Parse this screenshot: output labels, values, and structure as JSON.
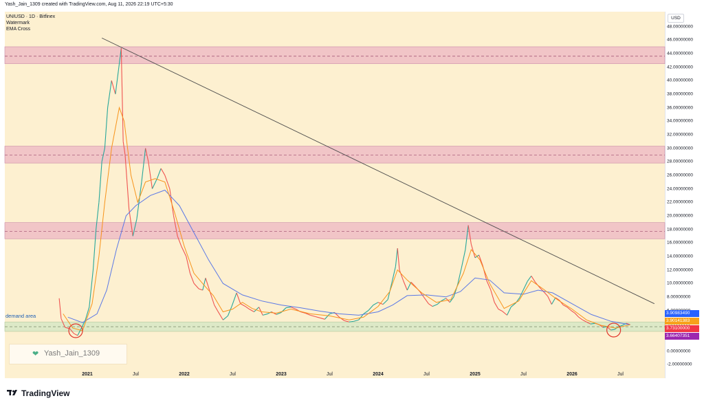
{
  "header": "Yash_Jain_1309 created with TradingView.com, Aug 11, 2026 22:19 UTC+5:30",
  "legend": [
    "UNIUSD · 1D · Bitfinex",
    "Watermark",
    "EMA Cross"
  ],
  "currency_label": "USD",
  "demand_label": "demand area",
  "watermark_text": "Yash_Jain_1309",
  "brand": "TradingView",
  "price_badges": [
    {
      "value": "3.90983490",
      "price": 3.9098,
      "color": "#2962ff"
    },
    {
      "value": "3.90141383",
      "price": 3.9014,
      "color": "#f7a21b"
    },
    {
      "value": "3.73100000",
      "price": 3.731,
      "color": "#f23645"
    },
    {
      "value": "3.66407351",
      "price": 3.664,
      "color": "#9c27b0"
    }
  ],
  "chart_data": {
    "type": "line",
    "symbol": "UNIUSD",
    "interval": "1D",
    "exchange": "Bitfinex",
    "x_ticks": [
      {
        "label": "2021",
        "t": 2021.0,
        "year": true
      },
      {
        "label": "Jul",
        "t": 2021.5,
        "year": false
      },
      {
        "label": "2022",
        "t": 2022.0,
        "year": true
      },
      {
        "label": "Jul",
        "t": 2022.5,
        "year": false
      },
      {
        "label": "2023",
        "t": 2023.0,
        "year": true
      },
      {
        "label": "Jul",
        "t": 2023.5,
        "year": false
      },
      {
        "label": "2024",
        "t": 2024.0,
        "year": true
      },
      {
        "label": "Jul",
        "t": 2024.5,
        "year": false
      },
      {
        "label": "2025",
        "t": 2025.0,
        "year": true
      },
      {
        "label": "Jul",
        "t": 2025.5,
        "year": false
      },
      {
        "label": "2026",
        "t": 2026.0,
        "year": true
      },
      {
        "label": "Jul",
        "t": 2026.5,
        "year": false
      }
    ],
    "y_ticks": [
      "48.00000000",
      "46.00000000",
      "44.00000000",
      "42.00000000",
      "40.00000000",
      "38.00000000",
      "36.00000000",
      "34.00000000",
      "32.00000000",
      "30.00000000",
      "28.00000000",
      "26.00000000",
      "24.00000000",
      "22.00000000",
      "20.00000000",
      "18.00000000",
      "16.00000000",
      "14.00000000",
      "12.00000000",
      "10.00000000",
      "8.00000000",
      "6.00000000",
      "4.00000000",
      "2.00000000",
      "0.00000000",
      "-2.00000000"
    ],
    "y_tick_values": [
      48,
      46,
      44,
      42,
      40,
      38,
      36,
      34,
      32,
      30,
      28,
      26,
      24,
      22,
      20,
      18,
      16,
      14,
      12,
      10,
      8,
      6,
      4,
      2,
      0,
      -2
    ],
    "zones": [
      {
        "name": "resistance-zone-44",
        "from": 42.5,
        "to": 45.0,
        "mid": 43.6
      },
      {
        "name": "resistance-zone-29",
        "from": 27.8,
        "to": 30.3,
        "mid": 29.0
      },
      {
        "name": "resistance-zone-17",
        "from": 16.6,
        "to": 19.0,
        "mid": 17.7
      },
      {
        "name": "demand-zone",
        "from": 2.9,
        "to": 4.3,
        "mid": 3.6
      }
    ],
    "trendline": {
      "from": {
        "t": 2021.15,
        "y": 46.3
      },
      "to": {
        "t": 2026.85,
        "y": 7.0
      }
    },
    "highlight_circles": [
      {
        "t": 2020.88,
        "y": 3.0
      },
      {
        "t": 2026.43,
        "y": 3.1
      }
    ],
    "price": [
      [
        2020.71,
        7.8
      ],
      [
        2020.73,
        4.8
      ],
      [
        2020.77,
        3.5
      ],
      [
        2020.82,
        3.3
      ],
      [
        2020.86,
        2.6
      ],
      [
        2020.9,
        2.3
      ],
      [
        2020.94,
        3.4
      ],
      [
        2020.98,
        4.6
      ],
      [
        2021.02,
        6.5
      ],
      [
        2021.06,
        12.0
      ],
      [
        2021.09,
        18.0
      ],
      [
        2021.12,
        22.0
      ],
      [
        2021.15,
        28.0
      ],
      [
        2021.18,
        30.0
      ],
      [
        2021.21,
        36.0
      ],
      [
        2021.25,
        40.0
      ],
      [
        2021.29,
        38.0
      ],
      [
        2021.33,
        42.5
      ],
      [
        2021.35,
        44.8
      ],
      [
        2021.37,
        31.0
      ],
      [
        2021.39,
        29.0
      ],
      [
        2021.43,
        21.0
      ],
      [
        2021.47,
        17.0
      ],
      [
        2021.51,
        19.5
      ],
      [
        2021.56,
        25.0
      ],
      [
        2021.6,
        30.0
      ],
      [
        2021.63,
        28.0
      ],
      [
        2021.67,
        24.0
      ],
      [
        2021.72,
        25.5
      ],
      [
        2021.76,
        27.0
      ],
      [
        2021.8,
        26.0
      ],
      [
        2021.85,
        24.0
      ],
      [
        2021.89,
        20.0
      ],
      [
        2021.93,
        17.0
      ],
      [
        2021.97,
        15.5
      ],
      [
        2022.02,
        14.0
      ],
      [
        2022.06,
        11.5
      ],
      [
        2022.1,
        10.0
      ],
      [
        2022.15,
        9.2
      ],
      [
        2022.19,
        9.0
      ],
      [
        2022.22,
        10.8
      ],
      [
        2022.26,
        9.0
      ],
      [
        2022.31,
        6.8
      ],
      [
        2022.35,
        5.8
      ],
      [
        2022.4,
        4.6
      ],
      [
        2022.45,
        5.2
      ],
      [
        2022.49,
        6.6
      ],
      [
        2022.54,
        8.6
      ],
      [
        2022.58,
        7.0
      ],
      [
        2022.63,
        6.6
      ],
      [
        2022.67,
        6.2
      ],
      [
        2022.72,
        5.8
      ],
      [
        2022.77,
        6.5
      ],
      [
        2022.81,
        5.3
      ],
      [
        2022.86,
        5.5
      ],
      [
        2022.9,
        5.8
      ],
      [
        2022.95,
        5.4
      ],
      [
        2023.0,
        5.7
      ],
      [
        2023.05,
        6.4
      ],
      [
        2023.1,
        6.5
      ],
      [
        2023.15,
        6.2
      ],
      [
        2023.2,
        5.8
      ],
      [
        2023.25,
        5.6
      ],
      [
        2023.3,
        5.3
      ],
      [
        2023.35,
        5.1
      ],
      [
        2023.4,
        4.9
      ],
      [
        2023.45,
        4.7
      ],
      [
        2023.5,
        5.5
      ],
      [
        2023.55,
        5.7
      ],
      [
        2023.6,
        5.0
      ],
      [
        2023.65,
        4.5
      ],
      [
        2023.7,
        4.3
      ],
      [
        2023.75,
        4.4
      ],
      [
        2023.8,
        4.6
      ],
      [
        2023.85,
        5.5
      ],
      [
        2023.9,
        6.0
      ],
      [
        2023.95,
        6.8
      ],
      [
        2024.0,
        7.2
      ],
      [
        2024.05,
        6.9
      ],
      [
        2024.1,
        7.6
      ],
      [
        2024.14,
        10.0
      ],
      [
        2024.18,
        12.5
      ],
      [
        2024.2,
        15.2
      ],
      [
        2024.22,
        12.0
      ],
      [
        2024.26,
        10.4
      ],
      [
        2024.3,
        9.0
      ],
      [
        2024.34,
        10.2
      ],
      [
        2024.38,
        9.6
      ],
      [
        2024.43,
        8.8
      ],
      [
        2024.47,
        8.0
      ],
      [
        2024.52,
        7.0
      ],
      [
        2024.56,
        6.6
      ],
      [
        2024.61,
        6.9
      ],
      [
        2024.65,
        7.4
      ],
      [
        2024.7,
        7.8
      ],
      [
        2024.74,
        7.2
      ],
      [
        2024.78,
        8.0
      ],
      [
        2024.82,
        9.8
      ],
      [
        2024.86,
        12.3
      ],
      [
        2024.9,
        15.0
      ],
      [
        2024.93,
        18.6
      ],
      [
        2024.96,
        15.8
      ],
      [
        2025.0,
        13.8
      ],
      [
        2025.04,
        14.2
      ],
      [
        2025.08,
        12.6
      ],
      [
        2025.12,
        10.4
      ],
      [
        2025.16,
        9.1
      ],
      [
        2025.2,
        7.2
      ],
      [
        2025.24,
        6.2
      ],
      [
        2025.28,
        5.9
      ],
      [
        2025.33,
        5.3
      ],
      [
        2025.37,
        6.5
      ],
      [
        2025.42,
        7.1
      ],
      [
        2025.46,
        7.9
      ],
      [
        2025.5,
        9.1
      ],
      [
        2025.54,
        10.3
      ],
      [
        2025.58,
        11.1
      ],
      [
        2025.62,
        10.2
      ],
      [
        2025.66,
        9.5
      ],
      [
        2025.7,
        8.9
      ],
      [
        2025.75,
        8.1
      ],
      [
        2025.79,
        6.9
      ],
      [
        2025.83,
        7.9
      ],
      [
        2025.87,
        7.5
      ],
      [
        2025.91,
        6.8
      ],
      [
        2025.95,
        6.5
      ],
      [
        2025.99,
        6.0
      ],
      [
        2026.03,
        5.6
      ],
      [
        2026.07,
        5.0
      ],
      [
        2026.11,
        4.6
      ],
      [
        2026.15,
        4.3
      ],
      [
        2026.19,
        4.0
      ],
      [
        2026.24,
        4.1
      ],
      [
        2026.28,
        3.9
      ],
      [
        2026.32,
        3.5
      ],
      [
        2026.36,
        3.6
      ],
      [
        2026.4,
        3.1
      ],
      [
        2026.44,
        3.2
      ],
      [
        2026.48,
        3.6
      ],
      [
        2026.52,
        3.8
      ],
      [
        2026.56,
        4.1
      ],
      [
        2026.6,
        3.9
      ]
    ],
    "ema_fast": [
      [
        2020.75,
        5.5
      ],
      [
        2020.85,
        3.4
      ],
      [
        2020.95,
        3.0
      ],
      [
        2021.05,
        7.0
      ],
      [
        2021.12,
        14.0
      ],
      [
        2021.18,
        22.0
      ],
      [
        2021.25,
        30.0
      ],
      [
        2021.33,
        36.0
      ],
      [
        2021.38,
        34.0
      ],
      [
        2021.45,
        26.0
      ],
      [
        2021.52,
        22.0
      ],
      [
        2021.6,
        25.0
      ],
      [
        2021.7,
        25.5
      ],
      [
        2021.8,
        25.0
      ],
      [
        2021.9,
        20.5
      ],
      [
        2022.0,
        15.5
      ],
      [
        2022.1,
        11.5
      ],
      [
        2022.2,
        9.8
      ],
      [
        2022.3,
        8.2
      ],
      [
        2022.4,
        5.8
      ],
      [
        2022.5,
        6.2
      ],
      [
        2022.6,
        7.2
      ],
      [
        2022.7,
        6.3
      ],
      [
        2022.8,
        5.8
      ],
      [
        2022.95,
        5.6
      ],
      [
        2023.1,
        6.2
      ],
      [
        2023.3,
        5.5
      ],
      [
        2023.5,
        5.2
      ],
      [
        2023.7,
        4.6
      ],
      [
        2023.85,
        5.0
      ],
      [
        2024.0,
        6.6
      ],
      [
        2024.12,
        8.8
      ],
      [
        2024.2,
        12.0
      ],
      [
        2024.3,
        10.5
      ],
      [
        2024.45,
        8.6
      ],
      [
        2024.6,
        7.2
      ],
      [
        2024.75,
        7.6
      ],
      [
        2024.88,
        11.5
      ],
      [
        2024.96,
        15.0
      ],
      [
        2025.05,
        13.5
      ],
      [
        2025.15,
        10.0
      ],
      [
        2025.3,
        6.3
      ],
      [
        2025.45,
        7.4
      ],
      [
        2025.58,
        10.4
      ],
      [
        2025.7,
        9.2
      ],
      [
        2025.85,
        7.6
      ],
      [
        2026.0,
        6.2
      ],
      [
        2026.15,
        4.6
      ],
      [
        2026.3,
        3.8
      ],
      [
        2026.45,
        3.4
      ],
      [
        2026.6,
        3.9
      ]
    ],
    "ema_slow": [
      [
        2020.8,
        5.0
      ],
      [
        2020.95,
        4.2
      ],
      [
        2021.1,
        5.5
      ],
      [
        2021.2,
        9.0
      ],
      [
        2021.3,
        15.0
      ],
      [
        2021.4,
        20.0
      ],
      [
        2021.5,
        21.5
      ],
      [
        2021.65,
        23.0
      ],
      [
        2021.8,
        23.8
      ],
      [
        2021.95,
        21.5
      ],
      [
        2022.1,
        17.5
      ],
      [
        2022.25,
        13.5
      ],
      [
        2022.4,
        10.0
      ],
      [
        2022.6,
        8.3
      ],
      [
        2022.8,
        7.4
      ],
      [
        2023.0,
        6.8
      ],
      [
        2023.2,
        6.4
      ],
      [
        2023.4,
        5.9
      ],
      [
        2023.6,
        5.5
      ],
      [
        2023.8,
        5.3
      ],
      [
        2024.0,
        5.8
      ],
      [
        2024.15,
        6.8
      ],
      [
        2024.3,
        8.2
      ],
      [
        2024.5,
        8.3
      ],
      [
        2024.7,
        8.0
      ],
      [
        2024.85,
        8.8
      ],
      [
        2025.0,
        10.8
      ],
      [
        2025.15,
        10.5
      ],
      [
        2025.3,
        8.6
      ],
      [
        2025.5,
        8.4
      ],
      [
        2025.65,
        9.0
      ],
      [
        2025.8,
        8.6
      ],
      [
        2026.0,
        7.0
      ],
      [
        2026.2,
        5.4
      ],
      [
        2026.4,
        4.4
      ],
      [
        2026.6,
        3.9
      ]
    ]
  },
  "colors": {
    "plot_bg": "#fdf0d0",
    "zone_fill": "#e8a3c0",
    "zone_border": "#c98aa8",
    "zone_mid": "#9c4b6e",
    "demand_fill": "#d9e8c5",
    "demand_mid": "#7a8a6a",
    "trendline": "#4a4a4a",
    "price_up": "#26a69a",
    "price_down": "#ef5350",
    "ema_fast": "#f7931a",
    "ema_slow": "#5a78e6",
    "circle": "#e0342b"
  }
}
